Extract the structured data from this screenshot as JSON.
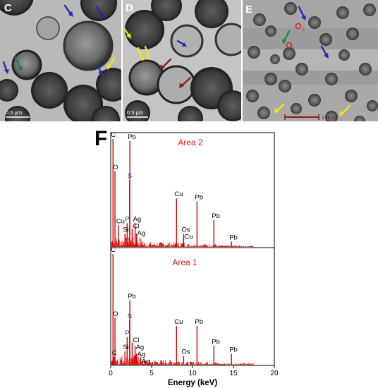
{
  "panels": {
    "c": {
      "label": "C",
      "scale_label": "0.5 µm"
    },
    "d": {
      "label": "D",
      "scale_label": "0.5 µm"
    },
    "e": {
      "label": "E",
      "scale_label": "1 mm",
      "marker_2": "2",
      "marker_1": "1"
    }
  },
  "spectrum_panel_label": "F",
  "arrow_colors": {
    "blue": "#1e2fb0",
    "yellow": "#f4e21a",
    "green": "#1a8a3a",
    "darkred": "#8a1c1c",
    "red": "#e01818"
  },
  "chart_data": {
    "type": "line",
    "xlabel": "Energy (keV)",
    "xlim": [
      0,
      20
    ],
    "x_ticks": [
      0,
      5,
      10,
      15,
      20
    ],
    "spectra": [
      {
        "name": "Area 2",
        "color": "#d80000",
        "peaks": [
          {
            "label": "C",
            "energy": 0.28,
            "height": 1.0
          },
          {
            "label": "O",
            "energy": 0.52,
            "height": 0.7
          },
          {
            "label": "Pb",
            "energy": 2.34,
            "height": 0.98
          },
          {
            "label": "S",
            "energy": 2.31,
            "height": 0.62,
            "label_color": "blue"
          },
          {
            "label": "P",
            "energy": 2.01,
            "height": 0.22,
            "label_color": "blue"
          },
          {
            "label": "Cu",
            "energy": 0.93,
            "height": 0.2
          },
          {
            "label": "Ag",
            "energy": 2.98,
            "height": 0.22
          },
          {
            "label": "Cl",
            "energy": 2.62,
            "height": 0.17
          },
          {
            "label": "Si",
            "energy": 1.74,
            "height": 0.12
          },
          {
            "label": "Ag",
            "energy": 3.15,
            "height": 0.12
          },
          {
            "label": "Cu",
            "energy": 8.04,
            "height": 0.45
          },
          {
            "label": "Pb",
            "energy": 10.55,
            "height": 0.42
          },
          {
            "label": "Os",
            "energy": 8.91,
            "height": 0.12
          },
          {
            "label": "Cu",
            "energy": 8.9,
            "height": 0.08
          },
          {
            "label": "Pb",
            "energy": 12.61,
            "height": 0.25
          },
          {
            "label": "Pb",
            "energy": 14.76,
            "height": 0.05
          }
        ]
      },
      {
        "name": "Area 1",
        "color": "#d80000",
        "peaks": [
          {
            "label": "C",
            "energy": 0.28,
            "height": 1.0
          },
          {
            "label": "O",
            "energy": 0.52,
            "height": 0.42
          },
          {
            "label": "Pb",
            "energy": 2.34,
            "height": 0.58
          },
          {
            "label": "S",
            "energy": 2.31,
            "height": 0.4,
            "label_color": "blue"
          },
          {
            "label": "P",
            "energy": 2.01,
            "height": 0.25,
            "label_color": "blue"
          },
          {
            "label": "Cl",
            "energy": 2.62,
            "height": 0.2
          },
          {
            "label": "Ag",
            "energy": 2.98,
            "height": 0.17
          },
          {
            "label": "Si",
            "energy": 1.74,
            "height": 0.12
          },
          {
            "label": "C",
            "energy": 0.4,
            "height": 0.07
          },
          {
            "label": "Ag",
            "energy": 3.15,
            "height": 0.1
          },
          {
            "label": "Ag",
            "energy": 3.35,
            "height": 0.07
          },
          {
            "label": "Cu",
            "energy": 8.04,
            "height": 0.35
          },
          {
            "label": "Pb",
            "energy": 10.55,
            "height": 0.35
          },
          {
            "label": "Os",
            "energy": 8.91,
            "height": 0.08
          },
          {
            "label": "Pb",
            "energy": 12.61,
            "height": 0.17
          },
          {
            "label": "Pb",
            "energy": 14.76,
            "height": 0.1
          }
        ]
      }
    ]
  }
}
